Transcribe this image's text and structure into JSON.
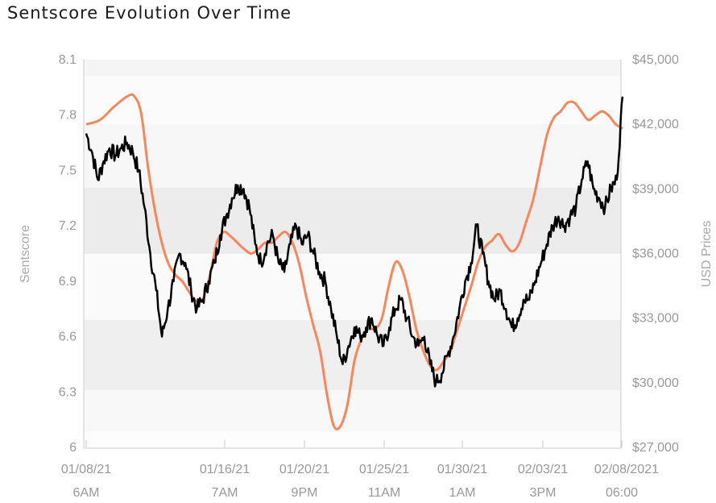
{
  "chart_data": {
    "type": "line",
    "title": "Sentscore Evolution Over Time",
    "ylabel": "Sentscore",
    "y2label": "USD Prices",
    "ylim": [
      6,
      8.1
    ],
    "y2lim": [
      27000,
      45000
    ],
    "yticks": [
      "8.1",
      "7.8",
      "7.5",
      "7.2",
      "6.9",
      "6.6",
      "6.3",
      "6"
    ],
    "y2ticks": [
      "$45,000",
      "$42,000",
      "$39,000",
      "$36,000",
      "$33,000",
      "$30,000",
      "$27,000"
    ],
    "xticks": [
      {
        "date": "01/08/21",
        "time": "6AM"
      },
      {
        "date": "01/16/21",
        "time": "7AM"
      },
      {
        "date": "01/20/21",
        "time": "9PM"
      },
      {
        "date": "01/25/21",
        "time": "11AM"
      },
      {
        "date": "01/30/21",
        "time": "1AM"
      },
      {
        "date": "02/03/21",
        "time": "3PM"
      },
      {
        "date": "02/08/2021",
        "time": "06:00"
      }
    ],
    "series": [
      {
        "axis": "left",
        "color": "#000000",
        "values": [
          [
            0,
            7.7
          ],
          [
            1,
            7.6
          ],
          [
            2,
            7.45
          ],
          [
            3,
            7.55
          ],
          [
            4,
            7.62
          ],
          [
            5,
            7.58
          ],
          [
            6,
            7.62
          ],
          [
            7,
            7.65
          ],
          [
            8,
            7.6
          ],
          [
            9,
            7.5
          ],
          [
            10,
            7.3
          ],
          [
            11,
            7.05
          ],
          [
            12,
            6.85
          ],
          [
            13,
            6.6
          ],
          [
            14,
            6.75
          ],
          [
            15,
            6.9
          ],
          [
            16,
            7.05
          ],
          [
            17,
            7.0
          ],
          [
            18,
            6.85
          ],
          [
            19,
            6.75
          ],
          [
            20,
            6.8
          ],
          [
            21,
            6.9
          ],
          [
            22,
            7.0
          ],
          [
            23,
            7.15
          ],
          [
            24,
            7.25
          ],
          [
            25,
            7.35
          ],
          [
            26,
            7.42
          ],
          [
            27,
            7.4
          ],
          [
            28,
            7.3
          ],
          [
            29,
            7.1
          ],
          [
            30,
            7.0
          ],
          [
            31,
            7.1
          ],
          [
            32,
            7.15
          ],
          [
            33,
            7.0
          ],
          [
            34,
            6.95
          ],
          [
            35,
            7.1
          ],
          [
            36,
            7.2
          ],
          [
            37,
            7.1
          ],
          [
            38,
            7.15
          ],
          [
            39,
            7.05
          ],
          [
            40,
            6.95
          ],
          [
            41,
            6.9
          ],
          [
            42,
            6.75
          ],
          [
            43,
            6.6
          ],
          [
            44,
            6.45
          ],
          [
            45,
            6.55
          ],
          [
            46,
            6.65
          ],
          [
            47,
            6.6
          ],
          [
            48,
            6.65
          ],
          [
            49,
            6.7
          ],
          [
            50,
            6.6
          ],
          [
            51,
            6.55
          ],
          [
            52,
            6.65
          ],
          [
            53,
            6.75
          ],
          [
            54,
            6.8
          ],
          [
            55,
            6.7
          ],
          [
            56,
            6.6
          ],
          [
            57,
            6.55
          ],
          [
            58,
            6.6
          ],
          [
            59,
            6.45
          ],
          [
            60,
            6.35
          ],
          [
            61,
            6.4
          ],
          [
            62,
            6.5
          ],
          [
            63,
            6.6
          ],
          [
            64,
            6.75
          ],
          [
            65,
            6.9
          ],
          [
            66,
            7.0
          ],
          [
            67,
            7.2
          ],
          [
            68,
            7.05
          ],
          [
            69,
            6.9
          ],
          [
            70,
            6.8
          ],
          [
            71,
            6.85
          ],
          [
            72,
            6.75
          ],
          [
            73,
            6.65
          ],
          [
            74,
            6.7
          ],
          [
            75,
            6.8
          ],
          [
            76,
            6.8
          ],
          [
            77,
            6.9
          ],
          [
            78,
            7.0
          ],
          [
            79,
            7.1
          ],
          [
            80,
            7.2
          ],
          [
            81,
            7.25
          ],
          [
            82,
            7.2
          ],
          [
            83,
            7.25
          ],
          [
            84,
            7.3
          ],
          [
            85,
            7.45
          ],
          [
            86,
            7.55
          ],
          [
            87,
            7.4
          ],
          [
            88,
            7.35
          ],
          [
            89,
            7.3
          ],
          [
            90,
            7.4
          ],
          [
            91,
            7.45
          ],
          [
            92,
            7.9
          ]
        ]
      },
      {
        "axis": "right",
        "color": "#f7875a",
        "values": [
          [
            0,
            42000
          ],
          [
            2,
            42200
          ],
          [
            4,
            42800
          ],
          [
            6,
            43300
          ],
          [
            7,
            43300
          ],
          [
            8,
            42500
          ],
          [
            9,
            40000
          ],
          [
            10,
            38000
          ],
          [
            11,
            36500
          ],
          [
            12,
            35500
          ],
          [
            13,
            35000
          ],
          [
            14,
            34700
          ],
          [
            15,
            34200
          ],
          [
            16,
            33800
          ],
          [
            17,
            33900
          ],
          [
            18,
            35000
          ],
          [
            19,
            36500
          ],
          [
            20,
            37000
          ],
          [
            21,
            36800
          ],
          [
            22,
            36500
          ],
          [
            23,
            36200
          ],
          [
            24,
            36000
          ],
          [
            25,
            36200
          ],
          [
            26,
            36500
          ],
          [
            27,
            36500
          ],
          [
            28,
            36800
          ],
          [
            29,
            37000
          ],
          [
            30,
            36500
          ],
          [
            31,
            35500
          ],
          [
            32,
            34000
          ],
          [
            33,
            32700
          ],
          [
            34,
            31500
          ],
          [
            35,
            29500
          ],
          [
            36,
            28000
          ],
          [
            37,
            28000
          ],
          [
            38,
            29000
          ],
          [
            39,
            31000
          ],
          [
            40,
            32000
          ],
          [
            41,
            32500
          ],
          [
            42,
            32500
          ],
          [
            43,
            33000
          ],
          [
            44,
            34500
          ],
          [
            45,
            35600
          ],
          [
            46,
            35200
          ],
          [
            47,
            34000
          ],
          [
            48,
            32500
          ],
          [
            49,
            31500
          ],
          [
            50,
            30800
          ],
          [
            51,
            30600
          ],
          [
            52,
            31000
          ],
          [
            53,
            31500
          ],
          [
            54,
            32500
          ],
          [
            55,
            33500
          ],
          [
            56,
            34500
          ],
          [
            57,
            35600
          ],
          [
            58,
            36300
          ],
          [
            59,
            36600
          ],
          [
            60,
            36900
          ],
          [
            61,
            36400
          ],
          [
            62,
            36100
          ],
          [
            63,
            36500
          ],
          [
            64,
            37500
          ],
          [
            65,
            38500
          ],
          [
            66,
            40000
          ],
          [
            67,
            41500
          ],
          [
            68,
            42300
          ],
          [
            69,
            42600
          ],
          [
            70,
            43000
          ],
          [
            71,
            43000
          ],
          [
            72,
            42600
          ],
          [
            73,
            42200
          ],
          [
            74,
            42400
          ],
          [
            75,
            42600
          ],
          [
            76,
            42400
          ],
          [
            77,
            42000
          ],
          [
            78,
            41800
          ]
        ]
      }
    ]
  }
}
